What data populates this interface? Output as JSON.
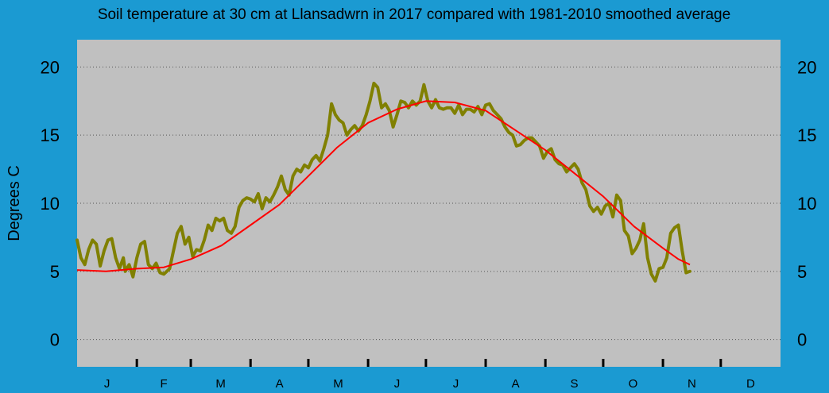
{
  "colors": {
    "background": "#1b9ad2",
    "plot_bg": "#c0c0c0",
    "series_2017": "#808000",
    "average": "#ff0000",
    "grid": "#555555",
    "text": "#000000"
  },
  "chart_data": {
    "type": "line",
    "title": "Soil temperature at 30 cm at Llansadwrn in 2017 compared with 1981-2010 smoothed average",
    "ylabel": "Degrees  C",
    "xlabel": "",
    "ylim": [
      -2,
      22
    ],
    "xlim": [
      0,
      365
    ],
    "yticks": [
      0,
      5,
      10,
      15,
      20
    ],
    "grid": "horizontal dotted",
    "months": [
      {
        "label": "J",
        "start": 0,
        "days": 31
      },
      {
        "label": "F",
        "start": 31,
        "days": 28
      },
      {
        "label": "M",
        "start": 59,
        "days": 31
      },
      {
        "label": "A",
        "start": 90,
        "days": 30
      },
      {
        "label": "M",
        "start": 120,
        "days": 31
      },
      {
        "label": "J",
        "start": 151,
        "days": 30
      },
      {
        "label": "J",
        "start": 181,
        "days": 31
      },
      {
        "label": "A",
        "start": 212,
        "days": 31
      },
      {
        "label": "S",
        "start": 243,
        "days": 30
      },
      {
        "label": "O",
        "start": 273,
        "days": 31
      },
      {
        "label": "N",
        "start": 304,
        "days": 30
      },
      {
        "label": "D",
        "start": 334,
        "days": 31
      }
    ],
    "series": [
      {
        "key": "obs2017",
        "points": [
          [
            0,
            7.3
          ],
          [
            2,
            6.0
          ],
          [
            4,
            5.5
          ],
          [
            6,
            6.6
          ],
          [
            8,
            7.3
          ],
          [
            10,
            7.0
          ],
          [
            12,
            5.4
          ],
          [
            14,
            6.5
          ],
          [
            16,
            7.3
          ],
          [
            18,
            7.4
          ],
          [
            20,
            6.0
          ],
          [
            22,
            5.2
          ],
          [
            24,
            6.0
          ],
          [
            25,
            5.0
          ],
          [
            27,
            5.5
          ],
          [
            29,
            4.6
          ],
          [
            31,
            6.0
          ],
          [
            33,
            7.0
          ],
          [
            35,
            7.2
          ],
          [
            37,
            5.5
          ],
          [
            39,
            5.2
          ],
          [
            41,
            5.6
          ],
          [
            43,
            4.9
          ],
          [
            45,
            4.8
          ],
          [
            48,
            5.2
          ],
          [
            50,
            6.5
          ],
          [
            52,
            7.8
          ],
          [
            54,
            8.3
          ],
          [
            56,
            7.0
          ],
          [
            58,
            7.5
          ],
          [
            60,
            6.1
          ],
          [
            62,
            6.6
          ],
          [
            64,
            6.5
          ],
          [
            66,
            7.3
          ],
          [
            68,
            8.4
          ],
          [
            70,
            8.0
          ],
          [
            72,
            8.9
          ],
          [
            74,
            8.7
          ],
          [
            76,
            8.9
          ],
          [
            78,
            8.0
          ],
          [
            80,
            7.8
          ],
          [
            82,
            8.3
          ],
          [
            84,
            9.7
          ],
          [
            86,
            10.2
          ],
          [
            88,
            10.4
          ],
          [
            90,
            10.3
          ],
          [
            92,
            10.1
          ],
          [
            94,
            10.7
          ],
          [
            96,
            9.6
          ],
          [
            98,
            10.4
          ],
          [
            100,
            10.1
          ],
          [
            102,
            10.6
          ],
          [
            104,
            11.2
          ],
          [
            106,
            12.0
          ],
          [
            108,
            11.0
          ],
          [
            110,
            10.6
          ],
          [
            112,
            12.0
          ],
          [
            114,
            12.5
          ],
          [
            116,
            12.3
          ],
          [
            118,
            12.8
          ],
          [
            120,
            12.6
          ],
          [
            122,
            13.2
          ],
          [
            124,
            13.5
          ],
          [
            126,
            13.1
          ],
          [
            128,
            14.0
          ],
          [
            130,
            15.0
          ],
          [
            132,
            17.3
          ],
          [
            134,
            16.5
          ],
          [
            136,
            16.1
          ],
          [
            138,
            15.9
          ],
          [
            140,
            15.0
          ],
          [
            142,
            15.4
          ],
          [
            144,
            15.7
          ],
          [
            146,
            15.3
          ],
          [
            148,
            15.7
          ],
          [
            150,
            16.5
          ],
          [
            152,
            17.5
          ],
          [
            154,
            18.8
          ],
          [
            156,
            18.5
          ],
          [
            158,
            17.0
          ],
          [
            160,
            17.3
          ],
          [
            162,
            16.8
          ],
          [
            164,
            15.6
          ],
          [
            166,
            16.5
          ],
          [
            168,
            17.5
          ],
          [
            170,
            17.4
          ],
          [
            172,
            17.0
          ],
          [
            174,
            17.5
          ],
          [
            176,
            17.2
          ],
          [
            178,
            17.5
          ],
          [
            180,
            18.7
          ],
          [
            182,
            17.5
          ],
          [
            184,
            17.0
          ],
          [
            186,
            17.6
          ],
          [
            188,
            17.0
          ],
          [
            190,
            16.9
          ],
          [
            192,
            17.0
          ],
          [
            194,
            17.0
          ],
          [
            196,
            16.6
          ],
          [
            198,
            17.2
          ],
          [
            200,
            16.5
          ],
          [
            202,
            16.9
          ],
          [
            204,
            16.9
          ],
          [
            206,
            16.7
          ],
          [
            208,
            17.1
          ],
          [
            210,
            16.5
          ],
          [
            212,
            17.2
          ],
          [
            214,
            17.3
          ],
          [
            216,
            16.8
          ],
          [
            218,
            16.5
          ],
          [
            220,
            16.2
          ],
          [
            222,
            15.6
          ],
          [
            224,
            15.2
          ],
          [
            226,
            15.0
          ],
          [
            228,
            14.2
          ],
          [
            230,
            14.3
          ],
          [
            232,
            14.6
          ],
          [
            234,
            14.8
          ],
          [
            236,
            14.8
          ],
          [
            238,
            14.5
          ],
          [
            240,
            14.2
          ],
          [
            242,
            13.3
          ],
          [
            244,
            13.8
          ],
          [
            246,
            14.0
          ],
          [
            248,
            13.2
          ],
          [
            250,
            12.9
          ],
          [
            252,
            12.8
          ],
          [
            254,
            12.3
          ],
          [
            256,
            12.6
          ],
          [
            258,
            12.9
          ],
          [
            260,
            12.5
          ],
          [
            262,
            11.5
          ],
          [
            264,
            11.0
          ],
          [
            266,
            9.8
          ],
          [
            268,
            9.4
          ],
          [
            270,
            9.7
          ],
          [
            272,
            9.2
          ],
          [
            274,
            9.8
          ],
          [
            276,
            10.0
          ],
          [
            278,
            9.0
          ],
          [
            280,
            10.6
          ],
          [
            282,
            10.2
          ],
          [
            284,
            8.0
          ],
          [
            286,
            7.6
          ],
          [
            288,
            6.3
          ],
          [
            290,
            6.7
          ],
          [
            292,
            7.3
          ],
          [
            294,
            8.5
          ],
          [
            296,
            6.0
          ],
          [
            298,
            4.8
          ],
          [
            300,
            4.3
          ],
          [
            302,
            5.2
          ],
          [
            304,
            5.3
          ],
          [
            306,
            6.0
          ],
          [
            308,
            7.8
          ],
          [
            310,
            8.2
          ],
          [
            312,
            8.4
          ],
          [
            314,
            6.5
          ],
          [
            316,
            4.9
          ],
          [
            318,
            5.0
          ]
        ]
      },
      {
        "key": "average",
        "points": [
          [
            0,
            5.1
          ],
          [
            15,
            5.0
          ],
          [
            31,
            5.2
          ],
          [
            45,
            5.3
          ],
          [
            59,
            5.9
          ],
          [
            75,
            6.9
          ],
          [
            90,
            8.4
          ],
          [
            105,
            9.9
          ],
          [
            120,
            12.0
          ],
          [
            135,
            14.1
          ],
          [
            151,
            15.9
          ],
          [
            166,
            16.9
          ],
          [
            181,
            17.5
          ],
          [
            196,
            17.4
          ],
          [
            212,
            16.8
          ],
          [
            227,
            15.4
          ],
          [
            243,
            13.9
          ],
          [
            258,
            12.2
          ],
          [
            273,
            10.5
          ],
          [
            289,
            8.3
          ],
          [
            304,
            6.7
          ],
          [
            312,
            5.9
          ],
          [
            318,
            5.5
          ]
        ]
      }
    ]
  }
}
